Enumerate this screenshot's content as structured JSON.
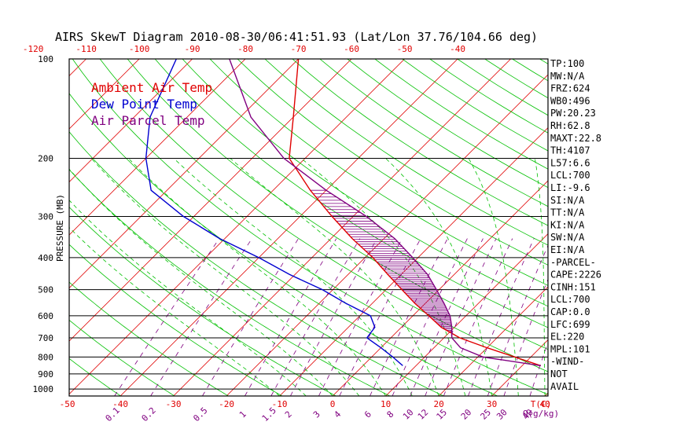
{
  "title": "AIRS SkewT Diagram 2010-08-30/06:41:51.93 (Lat/Lon 37.76/104.66 deg)",
  "chart_data": {
    "type": "line",
    "ylabel": "PRESSURE (MB)",
    "xlabel": "T(C)",
    "mixing_label": "Q(g/kg)",
    "pressure_ticks": [
      100,
      200,
      300,
      400,
      500,
      600,
      700,
      800,
      900,
      1000
    ],
    "top_temp_ticks": [
      -120,
      -110,
      -100,
      -90,
      -80,
      -70,
      -60,
      -50,
      -40
    ],
    "bottom_temp_ticks": [
      -50,
      -40,
      -30,
      -20,
      -10,
      0,
      10,
      20,
      30,
      40
    ],
    "mixing_ratio_ticks": [
      "0.1",
      "0.2",
      "0.5",
      "1",
      "1.5",
      "2",
      "3",
      "4",
      "6",
      "8",
      "10",
      "12",
      "15",
      "20",
      "25",
      "30",
      "40"
    ],
    "ylim": [
      1050,
      100
    ],
    "xlim_at_1000mb": [
      -52,
      42
    ],
    "legend": [
      {
        "name": "Ambient Air Temp",
        "color": "#e00000"
      },
      {
        "name": "Dew Point Temp",
        "color": "#0000d0"
      },
      {
        "name": "Air Parcel Temp",
        "color": "#800080"
      }
    ],
    "series": [
      {
        "name": "Ambient Air Temp",
        "color": "#e00000",
        "points": [
          {
            "p": 850,
            "t": 33.5
          },
          {
            "p": 800,
            "t": 27
          },
          {
            "p": 750,
            "t": 20
          },
          {
            "p": 700,
            "t": 13
          },
          {
            "p": 650,
            "t": 7.5
          },
          {
            "p": 600,
            "t": 3
          },
          {
            "p": 550,
            "t": -2
          },
          {
            "p": 500,
            "t": -7
          },
          {
            "p": 450,
            "t": -12.5
          },
          {
            "p": 400,
            "t": -18.5
          },
          {
            "p": 350,
            "t": -26
          },
          {
            "p": 300,
            "t": -34
          },
          {
            "p": 250,
            "t": -43
          },
          {
            "p": 200,
            "t": -53
          },
          {
            "p": 150,
            "t": -60
          },
          {
            "p": 100,
            "t": -70
          }
        ]
      },
      {
        "name": "Dew Point Temp",
        "color": "#0000d0",
        "points": [
          {
            "p": 850,
            "t": 7.5
          },
          {
            "p": 800,
            "t": 4
          },
          {
            "p": 750,
            "t": 0
          },
          {
            "p": 700,
            "t": -4.5
          },
          {
            "p": 650,
            "t": -5
          },
          {
            "p": 600,
            "t": -8
          },
          {
            "p": 550,
            "t": -15
          },
          {
            "p": 500,
            "t": -22
          },
          {
            "p": 450,
            "t": -31
          },
          {
            "p": 400,
            "t": -40
          },
          {
            "p": 350,
            "t": -51
          },
          {
            "p": 300,
            "t": -62
          },
          {
            "p": 250,
            "t": -73
          },
          {
            "p": 200,
            "t": -80
          },
          {
            "p": 150,
            "t": -87
          },
          {
            "p": 100,
            "t": -93
          }
        ]
      },
      {
        "name": "Air Parcel Temp",
        "color": "#800080",
        "points": [
          {
            "p": 850,
            "t": 33.5
          },
          {
            "p": 800,
            "t": 21
          },
          {
            "p": 750,
            "t": 15
          },
          {
            "p": 700,
            "t": 11.5
          },
          {
            "p": 650,
            "t": 9.5
          },
          {
            "p": 600,
            "t": 7
          },
          {
            "p": 550,
            "t": 3.5
          },
          {
            "p": 500,
            "t": -0.5
          },
          {
            "p": 450,
            "t": -5
          },
          {
            "p": 400,
            "t": -11
          },
          {
            "p": 350,
            "t": -18
          },
          {
            "p": 300,
            "t": -27.5
          },
          {
            "p": 250,
            "t": -40
          },
          {
            "p": 200,
            "t": -54
          },
          {
            "p": 150,
            "t": -68
          },
          {
            "p": 100,
            "t": -83
          }
        ]
      }
    ],
    "cape_shading_range_mb": [
      700,
      250
    ],
    "grid": true,
    "legend_position": "top-left"
  },
  "side_panel": [
    "TP:100",
    "MW:N/A",
    "FRZ:624",
    "WB0:496",
    "PW:20.23",
    "RH:62.8",
    "MAXT:22.8",
    "TH:4107",
    "L57:6.6",
    "LCL:700",
    "LI:-9.6",
    "SI:N/A",
    "TT:N/A",
    "KI:N/A",
    "SW:N/A",
    "EI:N/A",
    "-PARCEL-",
    "CAPE:2226",
    "CINH:151",
    "LCL:700",
    "CAP:0.0",
    "LFC:699",
    "EL:220",
    "MPL:101",
    "-WIND-",
    "NOT",
    "AVAIL"
  ],
  "colors": {
    "ambient": "#e00000",
    "dewpoint": "#0000d0",
    "parcel": "#800080",
    "dry_adiabat": "#00c000",
    "moist_adiabat": "#00c000",
    "mixing_ratio": "#800080"
  }
}
